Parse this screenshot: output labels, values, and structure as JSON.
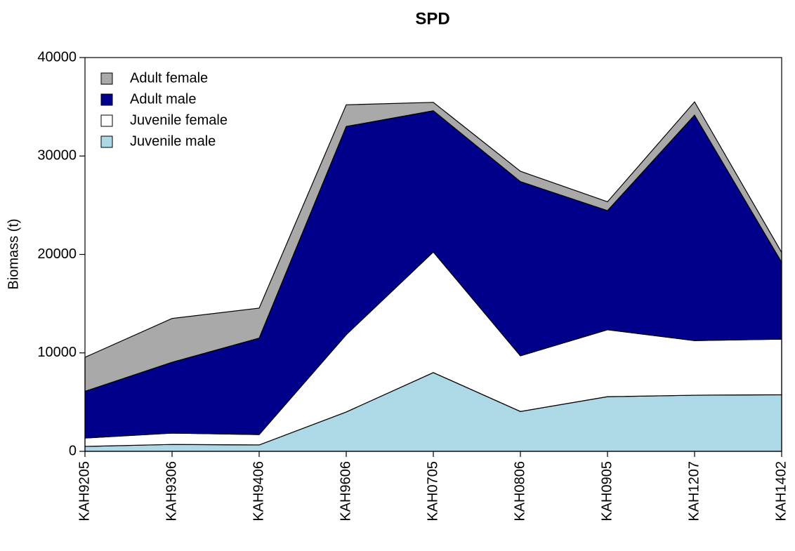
{
  "chart_data": {
    "type": "stacked-area",
    "title": "SPD",
    "y_label": "Biomass (t)",
    "categories": [
      "KAH9205",
      "KAH9306",
      "KAH9406",
      "KAH9606",
      "KAH0705",
      "KAH0806",
      "KAH0905",
      "KAH1207",
      "KAH1402"
    ],
    "series": [
      {
        "name": "Adult female",
        "color": "#a9a9a9",
        "values": [
          3450,
          4450,
          3050,
          2200,
          850,
          1050,
          900,
          1350,
          1000
        ]
      },
      {
        "name": "Adult male",
        "color": "#00008b",
        "values": [
          4750,
          7200,
          9800,
          21150,
          14350,
          17700,
          12100,
          22900,
          7800
        ]
      },
      {
        "name": "Juvenile female",
        "color": "#ffffff",
        "values": [
          850,
          1150,
          1050,
          7850,
          12250,
          5650,
          6800,
          5550,
          5650
        ]
      },
      {
        "name": "Juvenile male",
        "color": "#add8e6",
        "values": [
          500,
          700,
          650,
          4000,
          8000,
          4050,
          5550,
          5700,
          5750
        ]
      }
    ],
    "ylim": [
      0,
      40000
    ],
    "yticks": [
      0,
      10000,
      20000,
      30000,
      40000
    ],
    "legend": "top-left"
  }
}
